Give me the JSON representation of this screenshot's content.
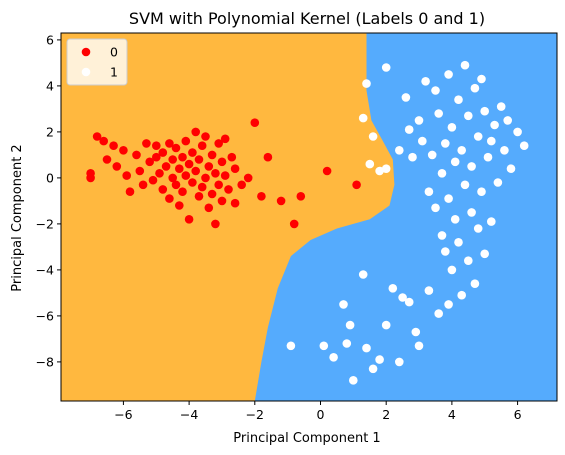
{
  "chart_data": {
    "type": "scatter",
    "title": "SVM with Polynomial Kernel (Labels 0 and 1)",
    "xlabel": "Principal Component 1",
    "ylabel": "Principal Component 2",
    "xlim": [
      -7.9,
      7.2
    ],
    "ylim": [
      -9.7,
      6.3
    ],
    "xticks": [
      -6,
      -4,
      -2,
      0,
      2,
      4,
      6
    ],
    "yticks": [
      -8,
      -6,
      -4,
      -2,
      0,
      2,
      4,
      6
    ],
    "xtick_labels": [
      "−6",
      "−4",
      "−2",
      "0",
      "2",
      "4",
      "6"
    ],
    "ytick_labels": [
      "−8",
      "−6",
      "−4",
      "−2",
      "0",
      "2",
      "4",
      "6"
    ],
    "grid": false,
    "legend_position": "top-left",
    "region_colors": {
      "label_0": "#FFB83F",
      "label_1": "#55ABFD"
    },
    "decision_boundary": [
      [
        -1.1,
        6.3
      ],
      [
        1.4,
        6.3
      ],
      [
        1.4,
        5.0
      ],
      [
        1.4,
        3.8
      ],
      [
        1.55,
        2.5
      ],
      [
        1.9,
        1.6
      ],
      [
        2.2,
        0.8
      ],
      [
        2.25,
        -0.3
      ],
      [
        2.1,
        -1.2
      ],
      [
        1.5,
        -1.8
      ],
      [
        0.5,
        -2.2
      ],
      [
        -0.3,
        -2.7
      ],
      [
        -0.9,
        -3.4
      ],
      [
        -1.3,
        -4.8
      ],
      [
        -1.6,
        -6.5
      ],
      [
        -1.8,
        -8.0
      ],
      [
        -2.0,
        -9.7
      ]
    ],
    "series": [
      {
        "name": "0",
        "color": "#FF0000",
        "points": [
          [
            -7.0,
            0.2
          ],
          [
            -7.0,
            0.0
          ],
          [
            -6.8,
            1.8
          ],
          [
            -6.6,
            1.6
          ],
          [
            -6.5,
            0.8
          ],
          [
            -6.3,
            1.4
          ],
          [
            -6.2,
            0.5
          ],
          [
            -6.0,
            1.2
          ],
          [
            -5.9,
            0.1
          ],
          [
            -5.8,
            -0.6
          ],
          [
            -5.6,
            1.0
          ],
          [
            -5.5,
            0.3
          ],
          [
            -5.4,
            -0.3
          ],
          [
            -5.3,
            1.5
          ],
          [
            -5.2,
            0.7
          ],
          [
            -5.1,
            -0.1
          ],
          [
            -5.0,
            0.9
          ],
          [
            -5.0,
            1.4
          ],
          [
            -4.9,
            0.2
          ],
          [
            -4.8,
            -0.5
          ],
          [
            -4.8,
            1.1
          ],
          [
            -4.7,
            0.5
          ],
          [
            -4.6,
            -0.9
          ],
          [
            -4.6,
            1.5
          ],
          [
            -4.5,
            0.0
          ],
          [
            -4.5,
            0.8
          ],
          [
            -4.4,
            -0.3
          ],
          [
            -4.4,
            1.3
          ],
          [
            -4.3,
            0.4
          ],
          [
            -4.3,
            -1.2
          ],
          [
            -4.2,
            0.9
          ],
          [
            -4.2,
            -0.6
          ],
          [
            -4.1,
            1.6
          ],
          [
            -4.1,
            0.1
          ],
          [
            -4.0,
            -1.8
          ],
          [
            -4.0,
            0.6
          ],
          [
            -3.9,
            1.1
          ],
          [
            -3.9,
            -0.2
          ],
          [
            -3.8,
            0.3
          ],
          [
            -3.8,
            2.0
          ],
          [
            -3.7,
            -0.8
          ],
          [
            -3.7,
            0.8
          ],
          [
            -3.6,
            1.4
          ],
          [
            -3.6,
            -0.4
          ],
          [
            -3.5,
            0.0
          ],
          [
            -3.5,
            1.8
          ],
          [
            -3.4,
            -1.3
          ],
          [
            -3.4,
            0.5
          ],
          [
            -3.3,
            1.0
          ],
          [
            -3.3,
            -0.7
          ],
          [
            -3.2,
            0.2
          ],
          [
            -3.2,
            -2.0
          ],
          [
            -3.1,
            1.5
          ],
          [
            -3.1,
            -0.3
          ],
          [
            -3.0,
            0.7
          ],
          [
            -3.0,
            -1.0
          ],
          [
            -2.9,
            0.1
          ],
          [
            -2.9,
            1.7
          ],
          [
            -2.8,
            -0.5
          ],
          [
            -2.7,
            0.9
          ],
          [
            -2.6,
            -1.1
          ],
          [
            -2.6,
            0.4
          ],
          [
            -2.4,
            -0.3
          ],
          [
            -2.2,
            0.0
          ],
          [
            -2.0,
            2.4
          ],
          [
            -1.8,
            -0.8
          ],
          [
            -1.6,
            0.9
          ],
          [
            -1.2,
            -1.0
          ],
          [
            -0.8,
            -2.0
          ],
          [
            -0.6,
            -0.8
          ],
          [
            0.2,
            0.3
          ],
          [
            1.1,
            -0.3
          ]
        ]
      },
      {
        "name": "1",
        "color": "#FFFFFF",
        "points": [
          [
            1.3,
            2.6
          ],
          [
            1.4,
            4.1
          ],
          [
            1.5,
            0.6
          ],
          [
            1.6,
            1.8
          ],
          [
            1.8,
            0.3
          ],
          [
            2.0,
            4.8
          ],
          [
            2.0,
            0.4
          ],
          [
            2.4,
            1.2
          ],
          [
            2.6,
            3.5
          ],
          [
            2.7,
            2.1
          ],
          [
            2.8,
            0.9
          ],
          [
            3.0,
            2.5
          ],
          [
            3.1,
            1.6
          ],
          [
            3.2,
            4.2
          ],
          [
            3.3,
            -0.6
          ],
          [
            3.4,
            1.0
          ],
          [
            3.5,
            3.8
          ],
          [
            3.5,
            -1.3
          ],
          [
            3.6,
            2.8
          ],
          [
            3.7,
            0.2
          ],
          [
            3.7,
            -2.5
          ],
          [
            3.8,
            1.5
          ],
          [
            3.8,
            -3.2
          ],
          [
            3.9,
            4.5
          ],
          [
            3.9,
            -0.9
          ],
          [
            4.0,
            2.2
          ],
          [
            4.0,
            -4.0
          ],
          [
            4.1,
            0.7
          ],
          [
            4.1,
            -1.8
          ],
          [
            4.2,
            3.4
          ],
          [
            4.2,
            -2.8
          ],
          [
            4.3,
            1.2
          ],
          [
            4.3,
            -5.1
          ],
          [
            4.4,
            4.9
          ],
          [
            4.4,
            -0.3
          ],
          [
            4.5,
            2.7
          ],
          [
            4.5,
            -3.6
          ],
          [
            4.6,
            0.5
          ],
          [
            4.6,
            -1.5
          ],
          [
            4.7,
            3.9
          ],
          [
            4.7,
            -4.6
          ],
          [
            4.8,
            1.8
          ],
          [
            4.8,
            -2.2
          ],
          [
            4.9,
            4.3
          ],
          [
            4.9,
            -0.6
          ],
          [
            5.0,
            2.9
          ],
          [
            5.0,
            -3.3
          ],
          [
            5.1,
            0.9
          ],
          [
            5.2,
            1.6
          ],
          [
            5.2,
            -1.9
          ],
          [
            5.3,
            2.3
          ],
          [
            5.4,
            -0.2
          ],
          [
            5.5,
            3.1
          ],
          [
            5.6,
            1.2
          ],
          [
            5.7,
            2.5
          ],
          [
            5.8,
            0.4
          ],
          [
            6.0,
            2.0
          ],
          [
            6.2,
            1.4
          ],
          [
            1.3,
            -4.2
          ],
          [
            1.0,
            -8.8
          ],
          [
            1.4,
            -7.4
          ],
          [
            2.0,
            -6.4
          ],
          [
            2.5,
            -5.2
          ],
          [
            2.9,
            -6.7
          ],
          [
            3.3,
            -4.9
          ],
          [
            3.6,
            -5.9
          ],
          [
            3.9,
            -5.5
          ],
          [
            0.7,
            -5.5
          ],
          [
            0.9,
            -6.4
          ],
          [
            1.8,
            -7.9
          ],
          [
            2.2,
            -4.8
          ],
          [
            2.7,
            -5.4
          ],
          [
            3.0,
            -7.3
          ],
          [
            0.1,
            -7.3
          ],
          [
            0.4,
            -7.8
          ],
          [
            0.8,
            -7.2
          ],
          [
            1.6,
            -8.3
          ],
          [
            2.4,
            -8.0
          ],
          [
            -0.9,
            -7.3
          ]
        ]
      }
    ]
  }
}
